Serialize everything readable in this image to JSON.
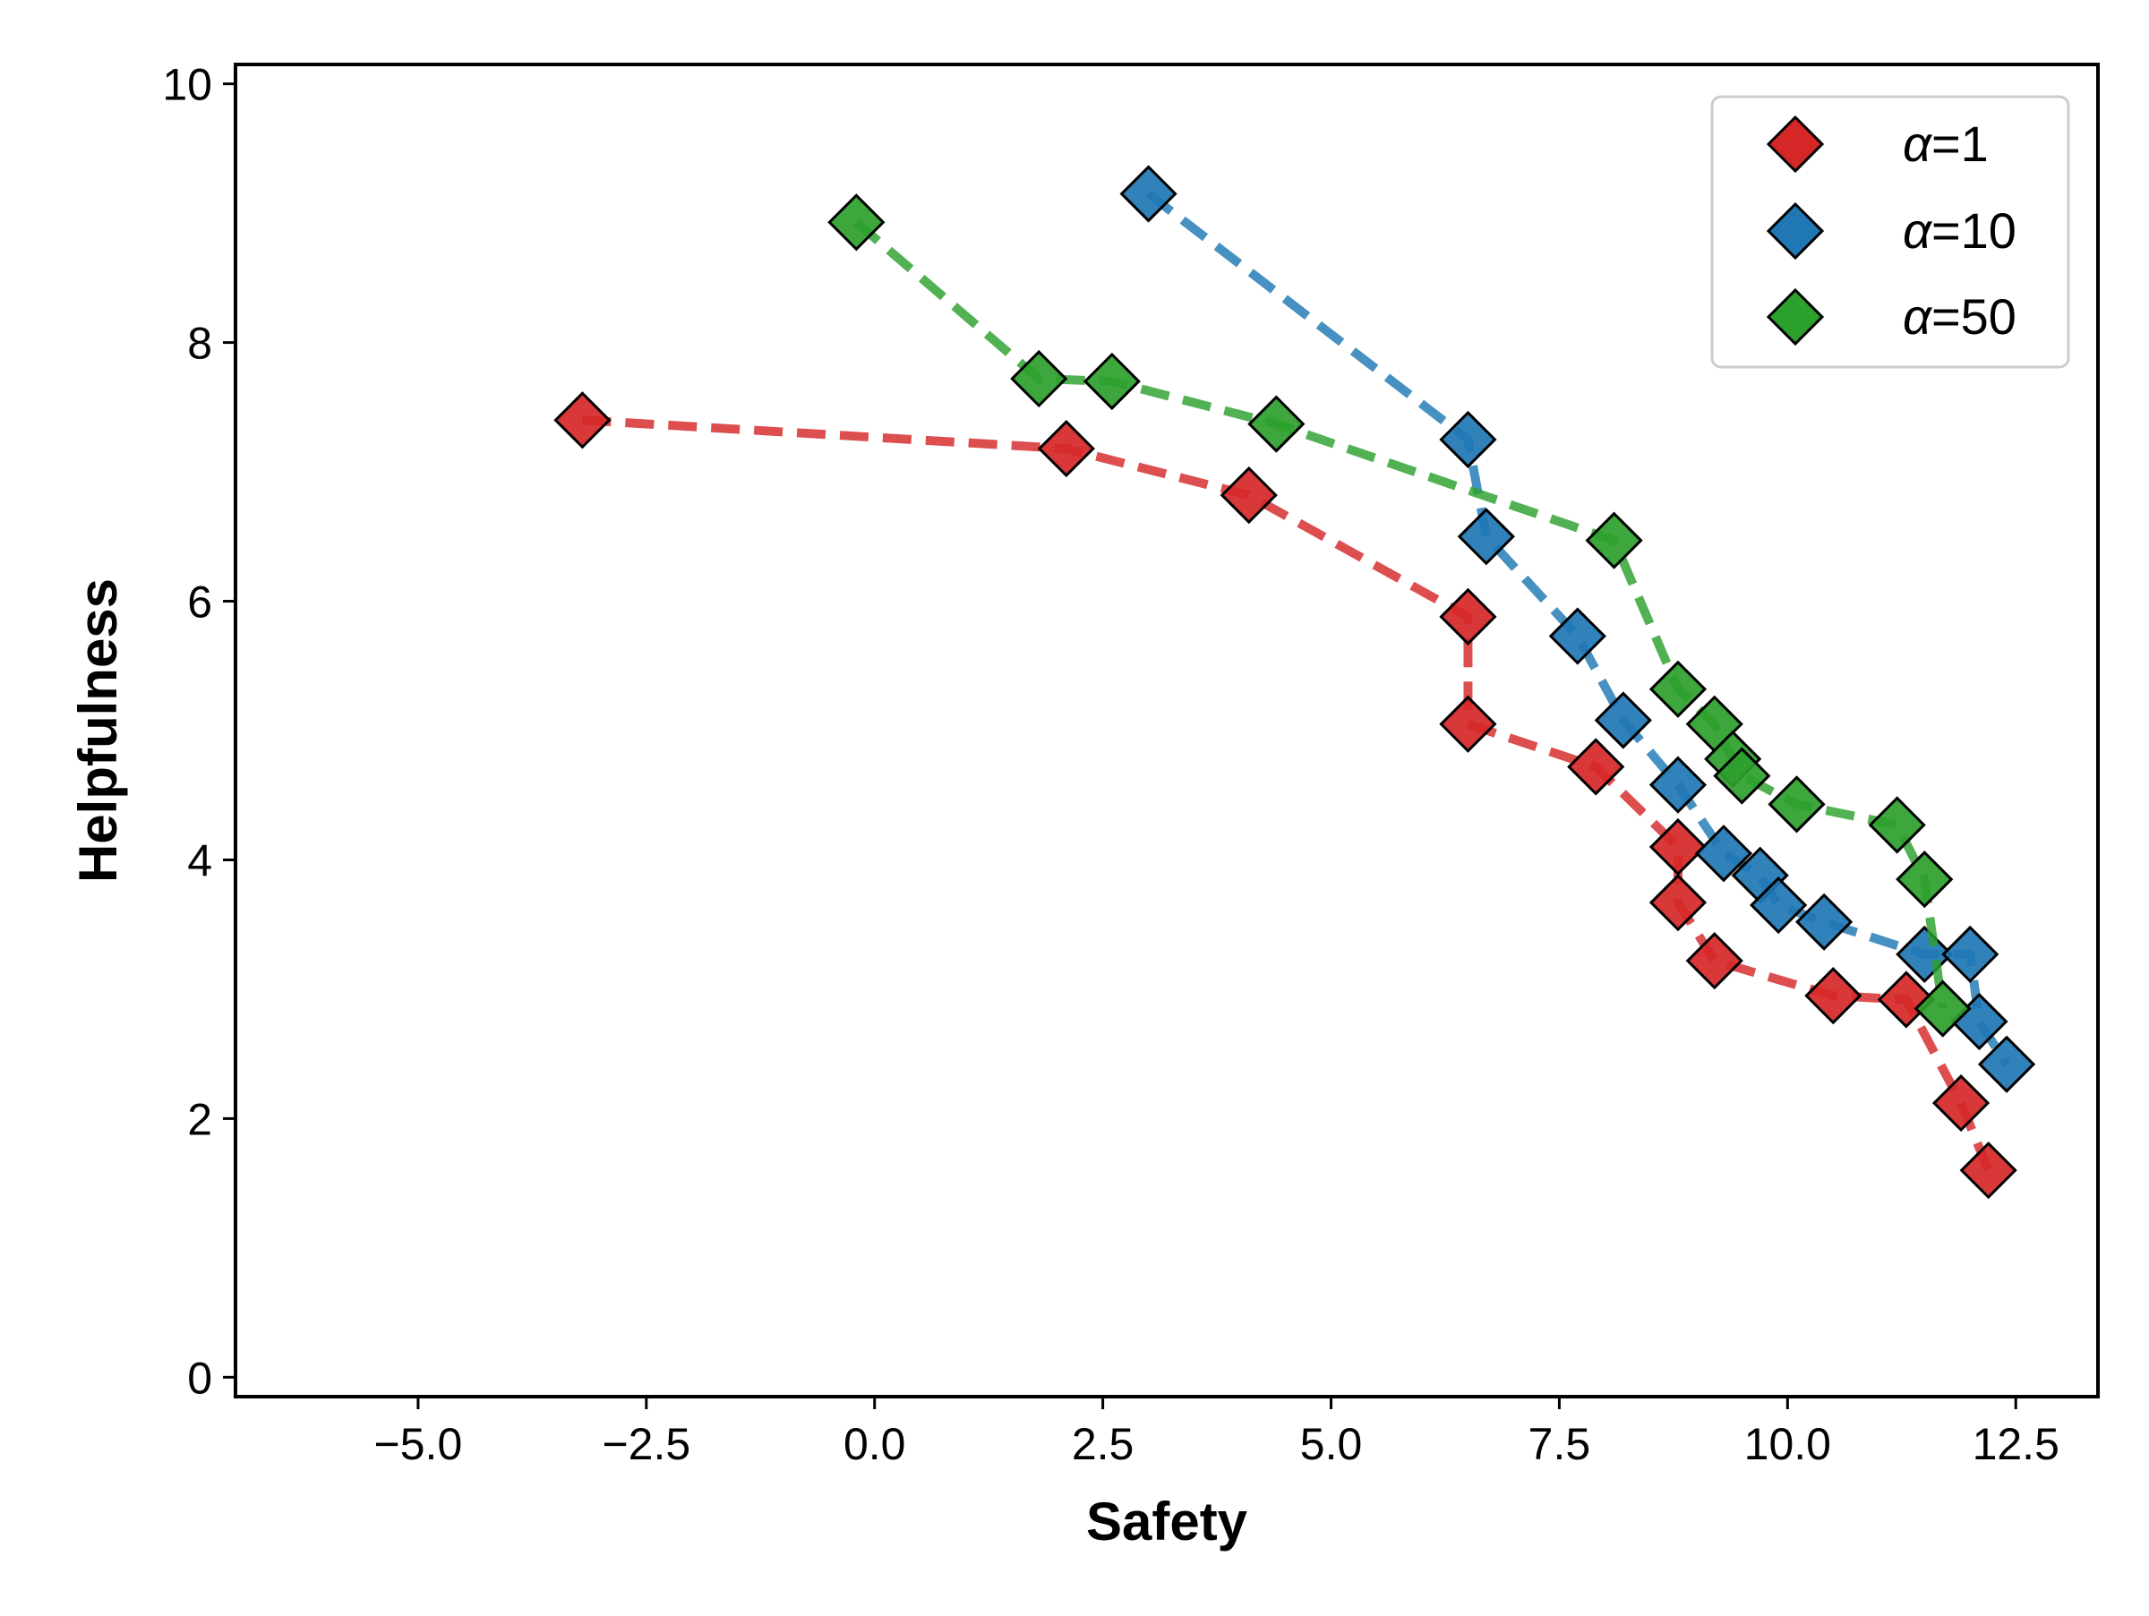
{
  "chart_data": {
    "type": "scatter",
    "xlabel": "Safety",
    "ylabel": "Helpfulness",
    "xlim": [
      -7.0,
      13.4
    ],
    "ylim": [
      -0.15,
      10.15
    ],
    "xticks": [
      -5.0,
      -2.5,
      0.0,
      2.5,
      5.0,
      7.5,
      10.0,
      12.5
    ],
    "xtick_labels": [
      "−5.0",
      "−2.5",
      "0.0",
      "2.5",
      "5.0",
      "7.5",
      "10.0",
      "12.5"
    ],
    "yticks": [
      0,
      2,
      4,
      6,
      8,
      10
    ],
    "ytick_labels": [
      "0",
      "2",
      "4",
      "6",
      "8",
      "10"
    ],
    "grid": false,
    "legend_position": "top-right",
    "series": [
      {
        "name": "α=1",
        "symbol": "α",
        "value_label": "=1",
        "color": "#d62728",
        "x": [
          -3.2,
          2.1,
          4.1,
          6.5,
          6.5,
          7.9,
          8.8,
          8.8,
          9.2,
          10.5,
          11.3,
          11.9,
          12.2
        ],
        "y": [
          7.4,
          7.18,
          6.82,
          5.88,
          5.05,
          4.72,
          4.1,
          3.67,
          3.22,
          2.95,
          2.92,
          2.12,
          1.6
        ]
      },
      {
        "name": "α=10",
        "symbol": "α",
        "value_label": "=10",
        "color": "#1f77b4",
        "x": [
          3.0,
          6.5,
          6.7,
          7.7,
          8.2,
          8.8,
          9.3,
          9.7,
          9.9,
          10.4,
          11.5,
          12.0,
          12.1,
          12.4
        ],
        "y": [
          9.15,
          7.25,
          6.5,
          5.73,
          5.08,
          4.58,
          4.05,
          3.88,
          3.65,
          3.52,
          3.27,
          3.27,
          2.75,
          2.42
        ]
      },
      {
        "name": "α=50",
        "symbol": "α",
        "value_label": "=50",
        "color": "#2ca02c",
        "x": [
          -0.2,
          1.8,
          2.6,
          4.4,
          8.1,
          8.8,
          9.2,
          9.4,
          9.5,
          10.1,
          11.2,
          11.5,
          11.7
        ],
        "y": [
          8.93,
          7.72,
          7.7,
          7.37,
          6.47,
          5.32,
          5.05,
          4.78,
          4.65,
          4.43,
          4.27,
          3.85,
          2.85
        ]
      }
    ]
  }
}
